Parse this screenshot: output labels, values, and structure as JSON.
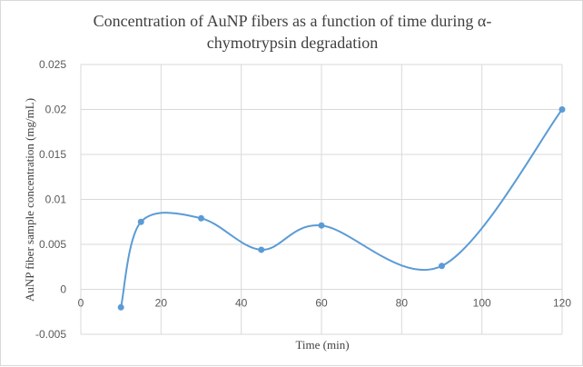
{
  "chart_data": {
    "type": "scatter",
    "title_line1": "Concentration of AuNP fibers as a function of time  during α-",
    "title_line2": "chymotrypsin degradation",
    "xlabel": "Time (min)",
    "ylabel": "AuNP fiber sample concentration (mg/mL)",
    "xlim": [
      0,
      120
    ],
    "ylim": [
      -0.005,
      0.025
    ],
    "xticks": [
      "0",
      "20",
      "40",
      "60",
      "80",
      "100",
      "120"
    ],
    "yticks": [
      "-0.005",
      "0",
      "0.005",
      "0.01",
      "0.015",
      "0.02",
      "0.025"
    ],
    "grid": true,
    "smooth_line": true,
    "line_color": "#5b9bd5",
    "series": [
      {
        "x": [
          10,
          15,
          30,
          45,
          60,
          90,
          120
        ],
        "y": [
          -0.002,
          0.0075,
          0.0079,
          0.0044,
          0.0071,
          0.0026,
          0.02
        ]
      }
    ]
  }
}
